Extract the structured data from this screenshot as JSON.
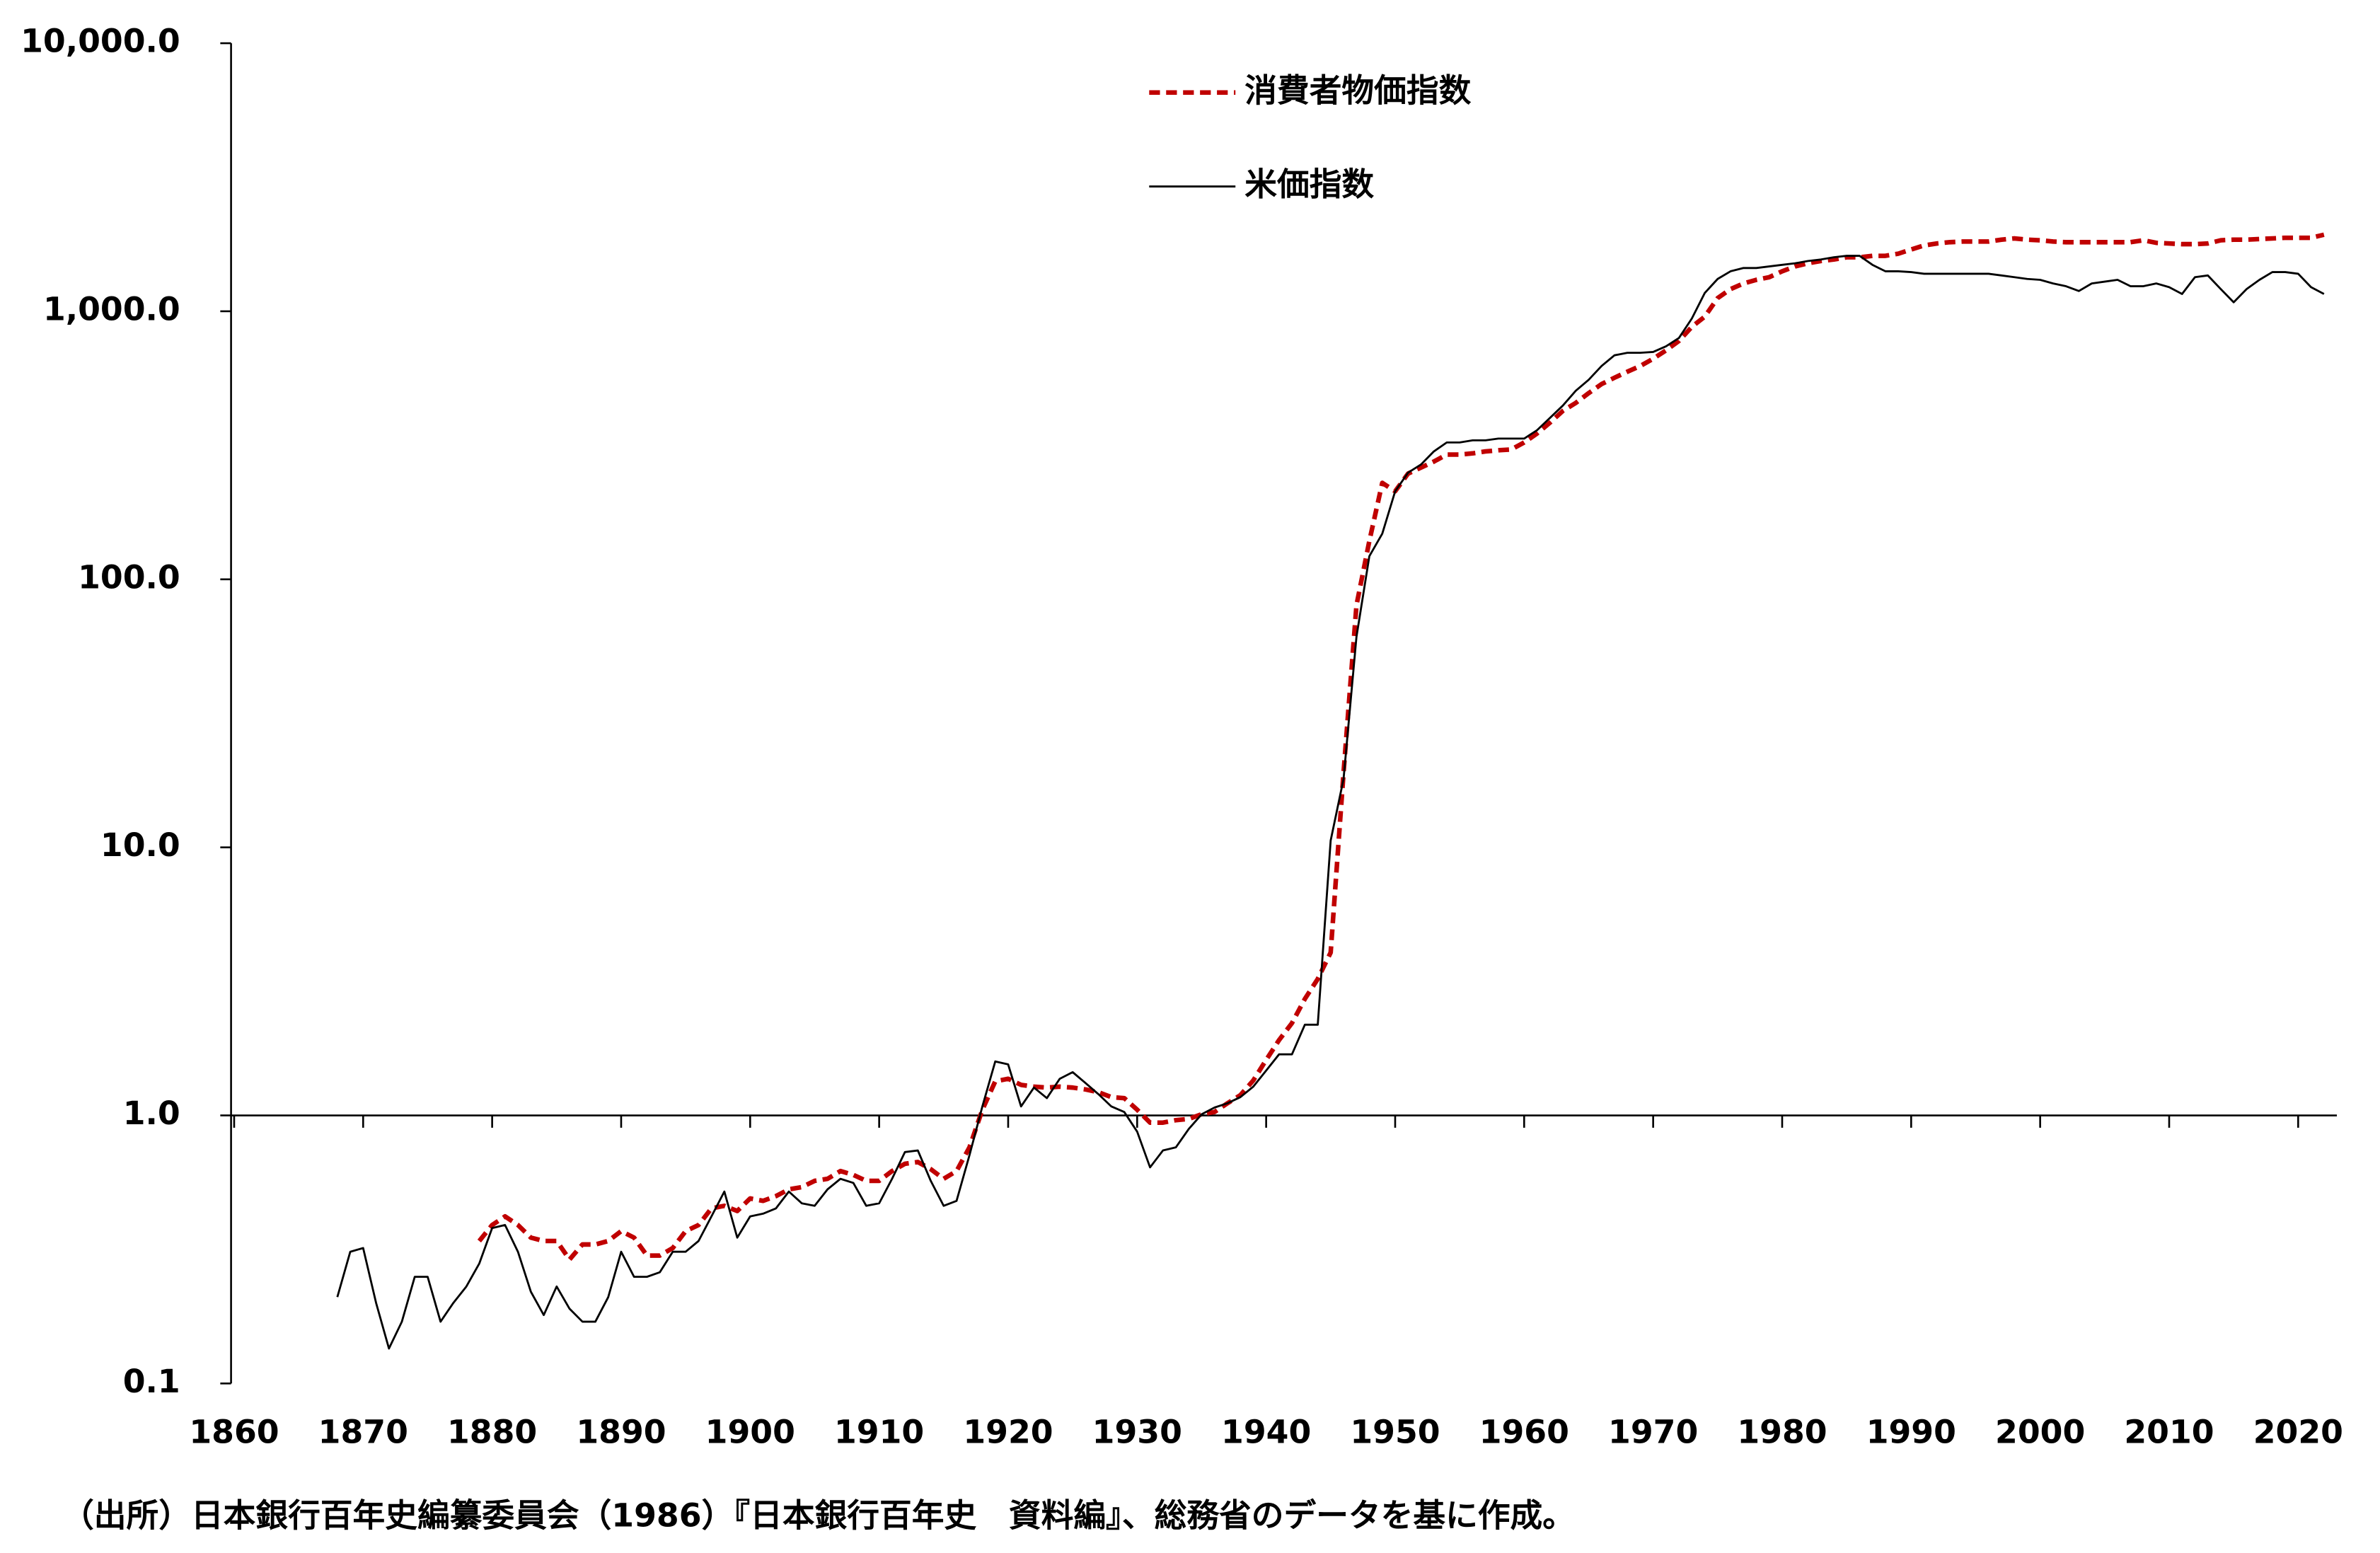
{
  "chart_data": {
    "type": "line",
    "x": [
      1868,
      1869,
      1870,
      1871,
      1872,
      1873,
      1874,
      1875,
      1876,
      1877,
      1878,
      1879,
      1880,
      1881,
      1882,
      1883,
      1884,
      1885,
      1886,
      1887,
      1888,
      1889,
      1890,
      1891,
      1892,
      1893,
      1894,
      1895,
      1896,
      1897,
      1898,
      1899,
      1900,
      1901,
      1902,
      1903,
      1904,
      1905,
      1906,
      1907,
      1908,
      1909,
      1910,
      1911,
      1912,
      1913,
      1914,
      1915,
      1916,
      1917,
      1918,
      1919,
      1920,
      1921,
      1922,
      1923,
      1924,
      1925,
      1926,
      1927,
      1928,
      1929,
      1930,
      1931,
      1932,
      1933,
      1934,
      1935,
      1936,
      1937,
      1938,
      1939,
      1940,
      1941,
      1942,
      1943,
      1944,
      1945,
      1946,
      1947,
      1948,
      1949,
      1950,
      1951,
      1952,
      1953,
      1954,
      1955,
      1956,
      1957,
      1958,
      1959,
      1960,
      1961,
      1962,
      1963,
      1964,
      1965,
      1966,
      1967,
      1968,
      1969,
      1970,
      1971,
      1972,
      1973,
      1974,
      1975,
      1976,
      1977,
      1978,
      1979,
      1980,
      1981,
      1982,
      1983,
      1984,
      1985,
      1986,
      1987,
      1988,
      1989,
      1990,
      1991,
      1992,
      1993,
      1994,
      1995,
      1996,
      1997,
      1998,
      1999,
      2000,
      2001,
      2002,
      2003,
      2004,
      2005,
      2006,
      2007,
      2008,
      2009,
      2010,
      2011,
      2012,
      2013,
      2014,
      2015,
      2016,
      2017,
      2018,
      2019,
      2020,
      2021,
      2022
    ],
    "series": [
      {
        "name": "消費者物価指数",
        "color": "#c00000",
        "dashed": true,
        "values": [
          null,
          null,
          null,
          null,
          null,
          null,
          null,
          null,
          null,
          null,
          null,
          0.34,
          0.39,
          0.42,
          0.39,
          0.35,
          0.34,
          0.34,
          0.29,
          0.33,
          0.33,
          0.34,
          0.37,
          0.35,
          0.3,
          0.3,
          0.32,
          0.37,
          0.39,
          0.45,
          0.46,
          0.44,
          0.49,
          0.48,
          0.5,
          0.53,
          0.54,
          0.57,
          0.58,
          0.62,
          0.6,
          0.57,
          0.57,
          0.62,
          0.66,
          0.67,
          0.63,
          0.58,
          0.62,
          0.76,
          1.05,
          1.34,
          1.37,
          1.3,
          1.28,
          1.27,
          1.28,
          1.27,
          1.25,
          1.22,
          1.17,
          1.16,
          1.05,
          0.94,
          0.94,
          0.96,
          0.97,
          1.01,
          1.03,
          1.11,
          1.19,
          1.35,
          1.61,
          1.91,
          2.21,
          2.72,
          3.23,
          4.05,
          19,
          80,
          139,
          229,
          213,
          248,
          261,
          275,
          292,
          292,
          295,
          300,
          303,
          305,
          324,
          350,
          384,
          425,
          455,
          495,
          535,
          565,
          595,
          625,
          665,
          715,
          775,
          875,
          955,
          1120,
          1210,
          1270,
          1310,
          1340,
          1410,
          1470,
          1510,
          1540,
          1560,
          1590,
          1590,
          1610,
          1610,
          1640,
          1700,
          1760,
          1790,
          1810,
          1820,
          1820,
          1820,
          1850,
          1870,
          1850,
          1840,
          1820,
          1810,
          1810,
          1810,
          1810,
          1810,
          1810,
          1840,
          1800,
          1790,
          1780,
          1780,
          1790,
          1840,
          1850,
          1850,
          1860,
          1870,
          1880,
          1880,
          1880,
          1930
        ]
      },
      {
        "name": "米価指数",
        "color": "#000000",
        "dashed": false,
        "values": [
          0.21,
          0.31,
          0.32,
          0.2,
          0.135,
          0.17,
          0.25,
          0.25,
          0.17,
          0.2,
          0.23,
          0.28,
          0.38,
          0.39,
          0.31,
          0.22,
          0.18,
          0.23,
          0.19,
          0.17,
          0.17,
          0.21,
          0.31,
          0.25,
          0.25,
          0.26,
          0.31,
          0.31,
          0.34,
          0.42,
          0.52,
          0.35,
          0.42,
          0.43,
          0.45,
          0.52,
          0.47,
          0.46,
          0.53,
          0.58,
          0.56,
          0.46,
          0.47,
          0.58,
          0.73,
          0.74,
          0.57,
          0.46,
          0.48,
          0.71,
          1.08,
          1.59,
          1.55,
          1.08,
          1.27,
          1.16,
          1.37,
          1.45,
          1.32,
          1.2,
          1.08,
          1.03,
          0.87,
          0.64,
          0.74,
          0.76,
          0.89,
          1.01,
          1.07,
          1.11,
          1.17,
          1.28,
          1.47,
          1.69,
          1.69,
          2.18,
          2.18,
          10.6,
          18,
          61,
          122,
          148,
          213,
          250,
          268,
          300,
          324,
          324,
          330,
          330,
          335,
          335,
          335,
          360,
          400,
          445,
          505,
          555,
          625,
          685,
          700,
          700,
          705,
          740,
          795,
          940,
          1170,
          1320,
          1410,
          1450,
          1450,
          1470,
          1490,
          1510,
          1540,
          1560,
          1590,
          1610,
          1610,
          1490,
          1410,
          1410,
          1400,
          1380,
          1380,
          1380,
          1380,
          1380,
          1380,
          1360,
          1340,
          1320,
          1310,
          1270,
          1240,
          1190,
          1270,
          1290,
          1310,
          1240,
          1240,
          1270,
          1230,
          1160,
          1340,
          1360,
          1210,
          1080,
          1210,
          1310,
          1400,
          1400,
          1380,
          1230,
          1160
        ]
      }
    ],
    "xlim": [
      1860,
      2023
    ],
    "xticks": [
      1860,
      1870,
      1880,
      1890,
      1900,
      1910,
      1920,
      1930,
      1940,
      1950,
      1960,
      1970,
      1980,
      1990,
      2000,
      2010,
      2020
    ],
    "ylim": [
      0.1,
      10000
    ],
    "yticks": [
      {
        "value": 0.1,
        "label": "0.1"
      },
      {
        "value": 1,
        "label": "1.0"
      },
      {
        "value": 10,
        "label": "10.0"
      },
      {
        "value": 100,
        "label": "100.0"
      },
      {
        "value": 1000,
        "label": "1,000.0"
      },
      {
        "value": 10000,
        "label": "10,000.0"
      }
    ],
    "y_log_scale": true,
    "x_axis_crosses_y": 1,
    "legend": "top",
    "note": "（出所）日本銀行百年史編纂委員会（1986）『日本銀行百年史　資料編』、総務省のデータを基に作成。"
  }
}
